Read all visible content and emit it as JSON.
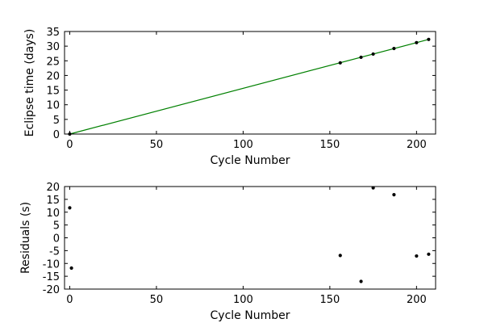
{
  "chart_data": [
    {
      "type": "scatter",
      "xlabel": "Cycle Number",
      "ylabel": "Eclipse time (days)",
      "xlim": [
        -3,
        211
      ],
      "ylim": [
        0,
        35
      ],
      "x_ticks": [
        0,
        50,
        100,
        150,
        200
      ],
      "y_ticks": [
        0,
        5,
        10,
        15,
        20,
        25,
        30,
        35
      ],
      "grid": false,
      "points": [
        {
          "x": 0,
          "y": 0.0
        },
        {
          "x": 156,
          "y": 24.3
        },
        {
          "x": 168,
          "y": 26.2
        },
        {
          "x": 175,
          "y": 27.3
        },
        {
          "x": 187,
          "y": 29.2
        },
        {
          "x": 200,
          "y": 31.2
        },
        {
          "x": 207,
          "y": 32.3
        }
      ],
      "fit_line": {
        "x": [
          0,
          207
        ],
        "y": [
          0.0,
          32.3
        ],
        "color": "#008000"
      }
    },
    {
      "type": "scatter",
      "xlabel": "Cycle Number",
      "ylabel": "Residuals (s)",
      "xlim": [
        -3,
        211
      ],
      "ylim": [
        -20,
        20
      ],
      "x_ticks": [
        0,
        50,
        100,
        150,
        200
      ],
      "y_ticks": [
        -20,
        -15,
        -10,
        -5,
        0,
        5,
        10,
        15,
        20
      ],
      "grid": false,
      "points": [
        {
          "x": 0,
          "y": 11.7
        },
        {
          "x": 1,
          "y": -11.8
        },
        {
          "x": 156,
          "y": -6.9
        },
        {
          "x": 168,
          "y": -17.0
        },
        {
          "x": 175,
          "y": 19.5
        },
        {
          "x": 187,
          "y": 16.8
        },
        {
          "x": 200,
          "y": -7.1
        },
        {
          "x": 207,
          "y": -6.4
        }
      ]
    }
  ]
}
